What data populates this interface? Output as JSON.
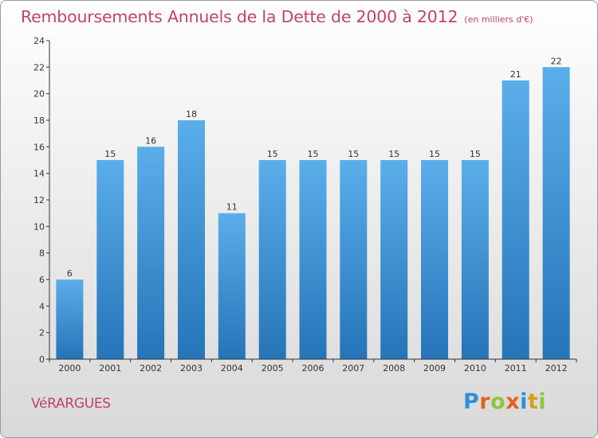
{
  "title": "Remboursements Annuels de la Dette de 2000 à 2012",
  "title_unit": "(en milliers d'€)",
  "place": "VéRARGUES",
  "logo": {
    "text": "Proxiti",
    "letter_colors": [
      "#2f8fd8",
      "#e2631c",
      "#8cc63f",
      "#e2631c",
      "#2f8fd8",
      "#d4a017",
      "#8cc63f"
    ]
  },
  "colors": {
    "title": "#c1416d",
    "bar_top": "#5aaeea",
    "bar_bottom": "#2574b8",
    "axis": "#333333"
  },
  "chart_data": {
    "type": "bar",
    "categories": [
      "2000",
      "2001",
      "2002",
      "2003",
      "2004",
      "2005",
      "2006",
      "2007",
      "2008",
      "2009",
      "2010",
      "2011",
      "2012"
    ],
    "values": [
      6,
      15,
      16,
      18,
      11,
      15,
      15,
      15,
      15,
      15,
      15,
      21,
      22
    ],
    "ylim": [
      0,
      24
    ],
    "yticks": [
      0,
      2,
      4,
      6,
      8,
      10,
      12,
      14,
      16,
      18,
      20,
      22,
      24
    ],
    "xlabel": "",
    "ylabel": "",
    "grid": false,
    "data_labels": true
  }
}
